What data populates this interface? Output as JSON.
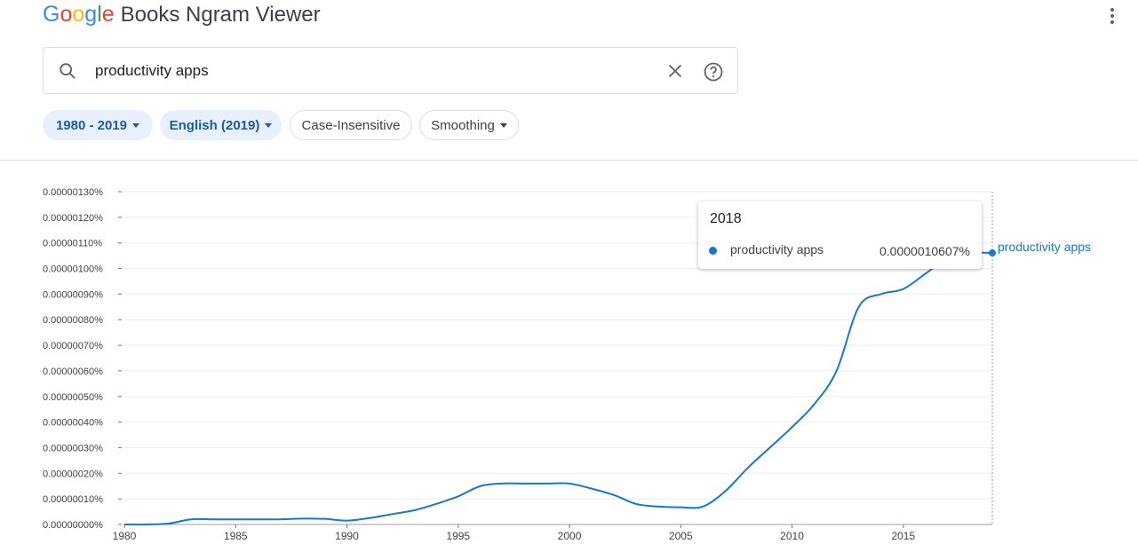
{
  "header": {
    "logo_parts": [
      "G",
      "o",
      "o",
      "g",
      "l",
      "e"
    ],
    "app_name": "Books Ngram Viewer",
    "menu_icon": "more-vert-icon"
  },
  "search": {
    "icon": "search-icon",
    "query": "productivity apps",
    "clear_icon": "close-icon",
    "help_icon": "help-circle-icon"
  },
  "filters": {
    "year_range": "1980 - 2019",
    "corpus": "English (2019)",
    "case": "Case-Insensitive",
    "smoothing": "Smoothing"
  },
  "tooltip": {
    "year": "2018",
    "series_name": "productivity apps",
    "value": "0.0000010607%"
  },
  "colors": {
    "series": "#1976d2",
    "chip_selected_bg": "#e8f0fe",
    "chip_selected_text": "#1a5ba6"
  },
  "chart_data": {
    "type": "line",
    "x_ticks": [
      1980,
      1985,
      1990,
      1995,
      2000,
      2005,
      2010,
      2015
    ],
    "y_ticks": [
      "0.00000000%",
      "0.00000010%",
      "0.00000020%",
      "0.00000030%",
      "0.00000040%",
      "0.00000050%",
      "0.00000060%",
      "0.00000070%",
      "0.00000080%",
      "0.00000090%",
      "0.00000100%",
      "0.00000110%",
      "0.00000120%",
      "0.00000130%"
    ],
    "xlim": [
      1980,
      2019
    ],
    "ylim": [
      0,
      1.3e-06
    ],
    "series": [
      {
        "name": "productivity apps",
        "x": [
          1980,
          1981,
          1982,
          1983,
          1984,
          1985,
          1986,
          1987,
          1988,
          1989,
          1990,
          1991,
          1992,
          1993,
          1994,
          1995,
          1996,
          1997,
          1998,
          1999,
          2000,
          2001,
          2002,
          2003,
          2004,
          2005,
          2006,
          2007,
          2008,
          2009,
          2010,
          2011,
          2012,
          2013,
          2014,
          2015,
          2016,
          2017,
          2018,
          2019
        ],
        "y": [
          0,
          0,
          4e-09,
          2e-08,
          2e-08,
          2e-08,
          2e-08,
          2e-08,
          2.3e-08,
          2.2e-08,
          1.5e-08,
          2.5e-08,
          4e-08,
          5.5e-08,
          8e-08,
          1.1e-07,
          1.5e-07,
          1.6e-07,
          1.6e-07,
          1.6e-07,
          1.6e-07,
          1.4e-07,
          1.15e-07,
          8e-08,
          7e-08,
          6.7e-08,
          7e-08,
          1.3e-07,
          2.2e-07,
          3e-07,
          3.8e-07,
          4.7e-07,
          6e-07,
          8.5e-07,
          9e-07,
          9.2e-07,
          9.8e-07,
          1.04e-06,
          1.0607e-06,
          1.0607e-06
        ]
      }
    ],
    "grid": true,
    "legend": "end-of-line label"
  }
}
